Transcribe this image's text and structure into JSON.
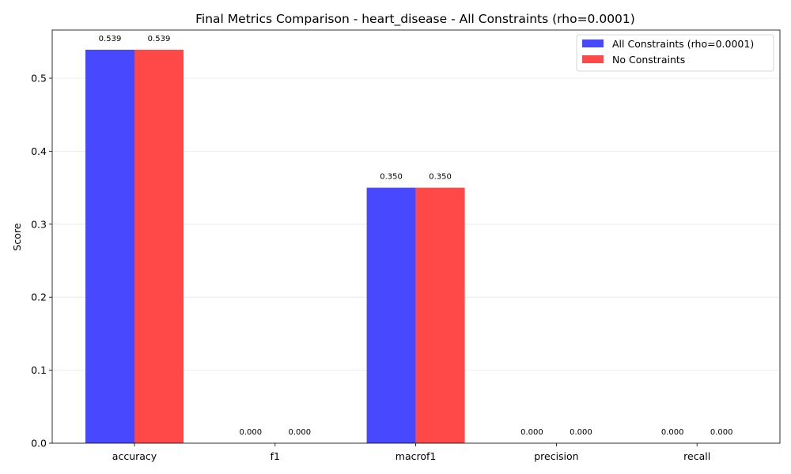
{
  "chart_data": {
    "type": "bar",
    "title": "Final Metrics Comparison - heart_disease - All Constraints (rho=0.0001)",
    "xlabel": "",
    "ylabel": "Score",
    "categories": [
      "accuracy",
      "f1",
      "macrof1",
      "precision",
      "recall"
    ],
    "series": [
      {
        "name": "All Constraints (rho=0.0001)",
        "values": [
          0.539,
          0.0,
          0.35,
          0.0,
          0.0
        ],
        "labels": [
          "0.539",
          "0.000",
          "0.350",
          "0.000",
          "0.000"
        ],
        "color": "#4848ff"
      },
      {
        "name": "No Constraints",
        "values": [
          0.539,
          0.0,
          0.35,
          0.0,
          0.0
        ],
        "labels": [
          "0.539",
          "0.000",
          "0.350",
          "0.000",
          "0.000"
        ],
        "color": "#ff4848"
      }
    ],
    "ylim": [
      0,
      0.566
    ],
    "yticks": [
      0.0,
      0.1,
      0.2,
      0.3,
      0.4,
      0.5
    ],
    "ytick_labels": [
      "0.0",
      "0.1",
      "0.2",
      "0.3",
      "0.4",
      "0.5"
    ],
    "grid": "y",
    "legend_position": "top-right"
  }
}
